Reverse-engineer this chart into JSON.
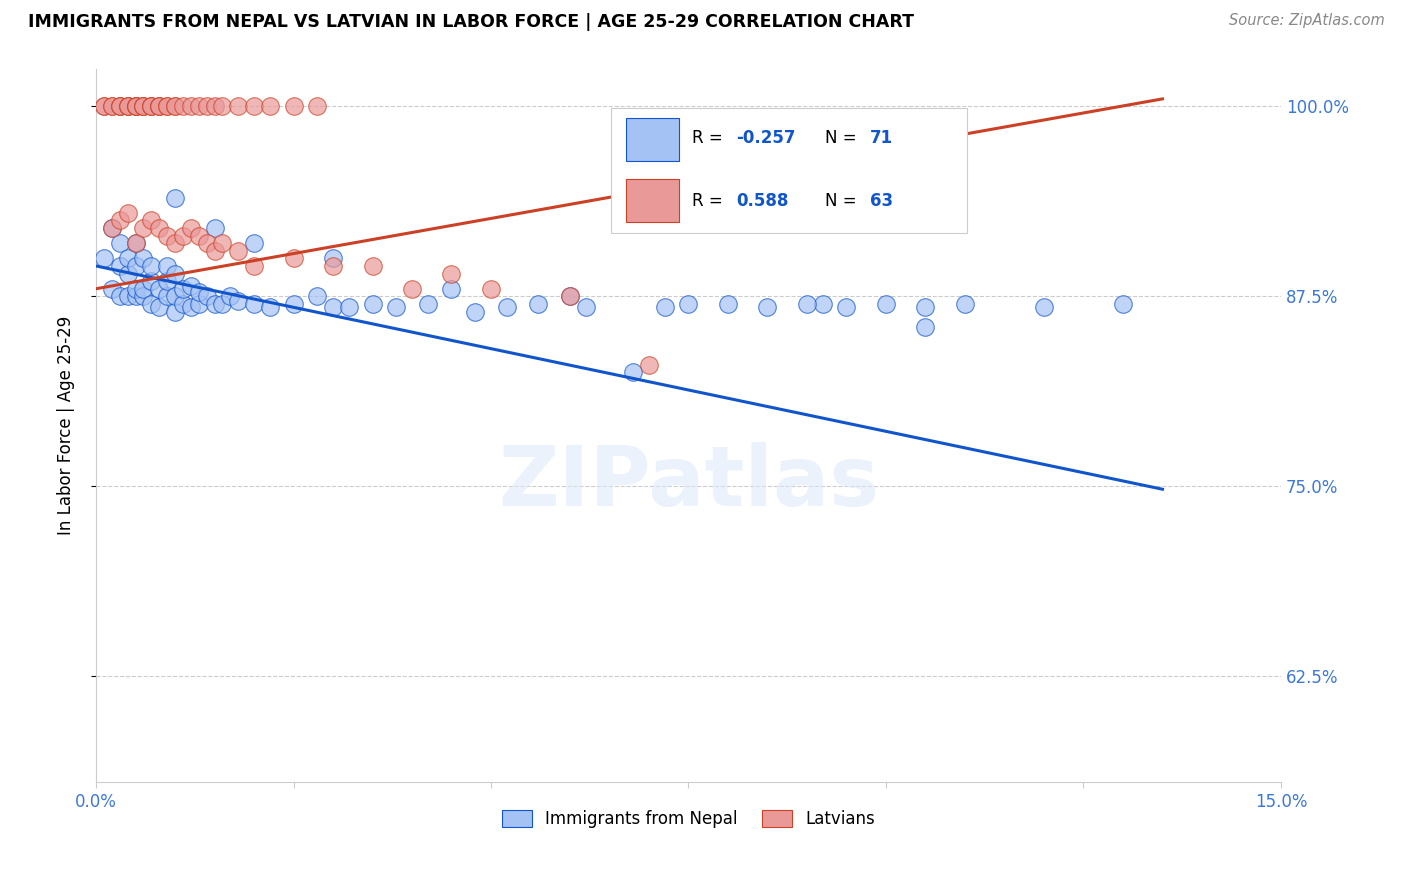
{
  "title": "IMMIGRANTS FROM NEPAL VS LATVIAN IN LABOR FORCE | AGE 25-29 CORRELATION CHART",
  "source": "Source: ZipAtlas.com",
  "ylabel": "In Labor Force | Age 25-29",
  "ytick_vals": [
    0.625,
    0.75,
    0.875,
    1.0
  ],
  "ytick_labels": [
    "62.5%",
    "75.0%",
    "87.5%",
    "100.0%"
  ],
  "xlim": [
    0.0,
    0.15
  ],
  "ylim": [
    0.555,
    1.025
  ],
  "blue_color": "#a4c2f4",
  "pink_color": "#ea9999",
  "blue_line_color": "#1155cc",
  "pink_line_color": "#cc4125",
  "watermark": "ZIPatlas",
  "nepal_x": [
    0.001,
    0.002,
    0.002,
    0.003,
    0.003,
    0.003,
    0.004,
    0.004,
    0.004,
    0.005,
    0.005,
    0.005,
    0.005,
    0.006,
    0.006,
    0.006,
    0.007,
    0.007,
    0.007,
    0.008,
    0.008,
    0.009,
    0.009,
    0.009,
    0.01,
    0.01,
    0.01,
    0.011,
    0.011,
    0.012,
    0.012,
    0.013,
    0.013,
    0.014,
    0.015,
    0.016,
    0.017,
    0.018,
    0.02,
    0.022,
    0.025,
    0.028,
    0.03,
    0.032,
    0.035,
    0.038,
    0.042,
    0.048,
    0.052,
    0.056,
    0.062,
    0.068,
    0.072,
    0.08,
    0.085,
    0.092,
    0.095,
    0.1,
    0.105,
    0.11,
    0.12,
    0.13,
    0.01,
    0.015,
    0.02,
    0.03,
    0.045,
    0.06,
    0.075,
    0.09,
    0.105
  ],
  "nepal_y": [
    0.9,
    0.88,
    0.92,
    0.875,
    0.895,
    0.91,
    0.875,
    0.89,
    0.9,
    0.875,
    0.88,
    0.895,
    0.91,
    0.875,
    0.88,
    0.9,
    0.87,
    0.885,
    0.895,
    0.868,
    0.88,
    0.875,
    0.885,
    0.895,
    0.865,
    0.875,
    0.89,
    0.87,
    0.88,
    0.868,
    0.882,
    0.87,
    0.878,
    0.875,
    0.87,
    0.87,
    0.875,
    0.872,
    0.87,
    0.868,
    0.87,
    0.875,
    0.868,
    0.868,
    0.87,
    0.868,
    0.87,
    0.865,
    0.868,
    0.87,
    0.868,
    0.825,
    0.868,
    0.87,
    0.868,
    0.87,
    0.868,
    0.87,
    0.855,
    0.87,
    0.868,
    0.87,
    0.94,
    0.92,
    0.91,
    0.9,
    0.88,
    0.875,
    0.87,
    0.87,
    0.868
  ],
  "latvian_x": [
    0.001,
    0.001,
    0.002,
    0.002,
    0.003,
    0.003,
    0.003,
    0.004,
    0.004,
    0.004,
    0.005,
    0.005,
    0.005,
    0.005,
    0.006,
    0.006,
    0.006,
    0.007,
    0.007,
    0.007,
    0.008,
    0.008,
    0.008,
    0.009,
    0.009,
    0.01,
    0.01,
    0.011,
    0.012,
    0.013,
    0.014,
    0.015,
    0.016,
    0.018,
    0.02,
    0.022,
    0.025,
    0.028,
    0.002,
    0.003,
    0.004,
    0.005,
    0.006,
    0.007,
    0.008,
    0.009,
    0.01,
    0.011,
    0.012,
    0.013,
    0.014,
    0.015,
    0.016,
    0.018,
    0.02,
    0.025,
    0.03,
    0.035,
    0.04,
    0.045,
    0.05,
    0.06,
    0.07
  ],
  "latvian_y": [
    1.0,
    1.0,
    1.0,
    1.0,
    1.0,
    1.0,
    1.0,
    1.0,
    1.0,
    1.0,
    1.0,
    1.0,
    1.0,
    1.0,
    1.0,
    1.0,
    1.0,
    1.0,
    1.0,
    1.0,
    1.0,
    1.0,
    1.0,
    1.0,
    1.0,
    1.0,
    1.0,
    1.0,
    1.0,
    1.0,
    1.0,
    1.0,
    1.0,
    1.0,
    1.0,
    1.0,
    1.0,
    1.0,
    0.92,
    0.925,
    0.93,
    0.91,
    0.92,
    0.925,
    0.92,
    0.915,
    0.91,
    0.915,
    0.92,
    0.915,
    0.91,
    0.905,
    0.91,
    0.905,
    0.895,
    0.9,
    0.895,
    0.895,
    0.88,
    0.89,
    0.88,
    0.875,
    0.83
  ],
  "nepal_line_x": [
    0.0,
    0.135
  ],
  "nepal_line_y": [
    0.895,
    0.748
  ],
  "latvian_line_x": [
    0.0,
    0.135
  ],
  "latvian_line_y": [
    0.88,
    1.005
  ]
}
